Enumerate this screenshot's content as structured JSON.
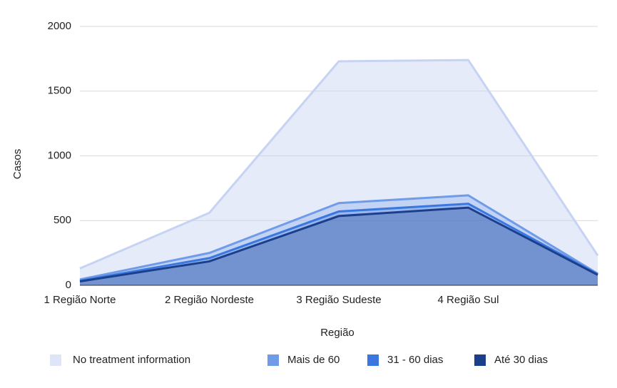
{
  "chart_data": {
    "type": "area",
    "x_label": "Região",
    "y_label": "Casos",
    "categories": [
      "1 Região Norte",
      "2 Região Nordeste",
      "3 Região Sudeste",
      "4 Região Sul",
      null
    ],
    "series": [
      {
        "name": "No treatment information",
        "color": "#c6d3f2",
        "values": [
          130,
          560,
          1730,
          1740,
          230
        ]
      },
      {
        "name": "Mais de 60",
        "color": "#6f9be8",
        "values": [
          45,
          250,
          635,
          695,
          90
        ]
      },
      {
        "name": "31 - 60 dias",
        "color": "#3a78e0",
        "values": [
          35,
          210,
          570,
          630,
          85
        ]
      },
      {
        "name": "Até 30 dias",
        "color": "#1c3f8c",
        "values": [
          30,
          185,
          535,
          600,
          80
        ]
      }
    ],
    "ylim": [
      0,
      2000
    ],
    "yticks": [
      0,
      500,
      1000,
      1500,
      2000
    ],
    "grid": true
  }
}
